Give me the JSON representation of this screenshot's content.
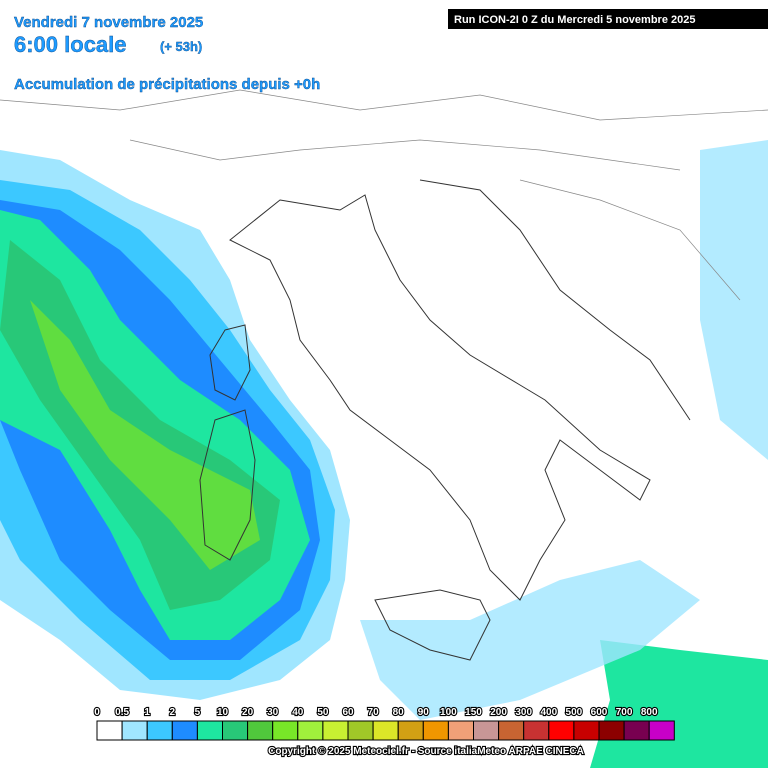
{
  "header": {
    "date": "Vendredi 7 novembre 2025",
    "time": "6:00 locale",
    "lead": "(+ 53h)",
    "product": "Accumulation de précipitations depuis +0h",
    "run": "Run ICON-2I 0 Z du Mercredi 5 novembre 2025"
  },
  "legend": {
    "labels": [
      0,
      0.5,
      1,
      2,
      5,
      10,
      20,
      30,
      40,
      50,
      60,
      70,
      80,
      90,
      100,
      150,
      200,
      300,
      400,
      500,
      600,
      700,
      800
    ],
    "colors": [
      "#ffffff",
      "#a0e6ff",
      "#3cc8ff",
      "#1e8cff",
      "#1ee6a0",
      "#28c878",
      "#50c83c",
      "#78e628",
      "#a0f03c",
      "#c8f032",
      "#a0c828",
      "#dce628",
      "#d2a014",
      "#f09600",
      "#f0a078",
      "#c89696",
      "#c86432",
      "#c83232",
      "#ff0000",
      "#c80000",
      "#8c0000",
      "#780050",
      "#c800c8"
    ]
  },
  "footer": {
    "copyright": "Copyright © 2025 Meteociel.fr - Source italiaMeteo ARPAE CINECA"
  }
}
